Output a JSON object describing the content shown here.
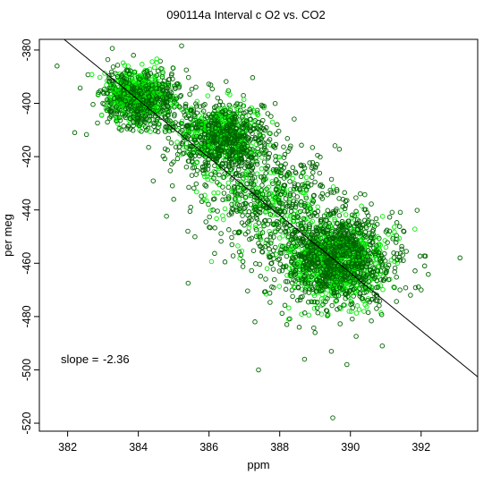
{
  "chart_data": {
    "type": "scatter",
    "title": "090114a   Interval c O2 vs. CO2",
    "xlabel": "ppm",
    "ylabel": "per meg",
    "xlim": [
      381.2,
      393.6
    ],
    "ylim": [
      -523,
      -376
    ],
    "xticks": [
      382,
      384,
      386,
      388,
      390,
      392
    ],
    "yticks": [
      -380,
      -400,
      -420,
      -440,
      -460,
      -480,
      -500,
      -520
    ],
    "annotation": {
      "slope_label": "slope =",
      "slope_value": "-2.36",
      "slope": -2.36
    },
    "regression_line": {
      "x": [
        381.9,
        393.6
      ],
      "y": [
        -375.2,
        -502.6
      ]
    },
    "series": [
      {
        "color": "#006400",
        "marker": "open-circle",
        "clusters": [
          {
            "cx": 384.0,
            "cy": -398,
            "sx": 0.55,
            "sy": 5.5,
            "n": 620
          },
          {
            "cx": 386.4,
            "cy": -414,
            "sx": 0.7,
            "sy": 7.5,
            "n": 620
          },
          {
            "cx": 389.6,
            "cy": -458,
            "sx": 0.85,
            "sy": 9.0,
            "n": 1000
          },
          {
            "cx": 387.7,
            "cy": -436,
            "sx": 0.9,
            "sy": 10.0,
            "n": 380
          }
        ]
      },
      {
        "color": "#00ee00",
        "marker": "open-circle",
        "clusters": [
          {
            "cx": 384.0,
            "cy": -397,
            "sx": 0.45,
            "sy": 4.5,
            "n": 520
          },
          {
            "cx": 386.3,
            "cy": -412,
            "sx": 0.55,
            "sy": 6.0,
            "n": 420
          },
          {
            "cx": 389.6,
            "cy": -459,
            "sx": 0.7,
            "sy": 7.5,
            "n": 800
          },
          {
            "cx": 387.6,
            "cy": -437,
            "sx": 0.75,
            "sy": 8.0,
            "n": 200
          }
        ]
      }
    ],
    "outliers": [
      {
        "x": 381.7,
        "y": -386
      },
      {
        "x": 382.2,
        "y": -411
      },
      {
        "x": 389.5,
        "y": -518
      },
      {
        "x": 387.4,
        "y": -500
      },
      {
        "x": 393.1,
        "y": -458
      },
      {
        "x": 392.1,
        "y": -461
      },
      {
        "x": 390.9,
        "y": -491
      },
      {
        "x": 389.9,
        "y": -498
      },
      {
        "x": 391.4,
        "y": -470
      },
      {
        "x": 388.2,
        "y": -483
      },
      {
        "x": 388.7,
        "y": -496
      },
      {
        "x": 387.3,
        "y": -482
      },
      {
        "x": 385.0,
        "y": -436
      },
      {
        "x": 385.4,
        "y": -448
      },
      {
        "x": 389.0,
        "y": -486
      },
      {
        "x": 391.7,
        "y": -472
      },
      {
        "x": 392.0,
        "y": -470
      }
    ]
  }
}
